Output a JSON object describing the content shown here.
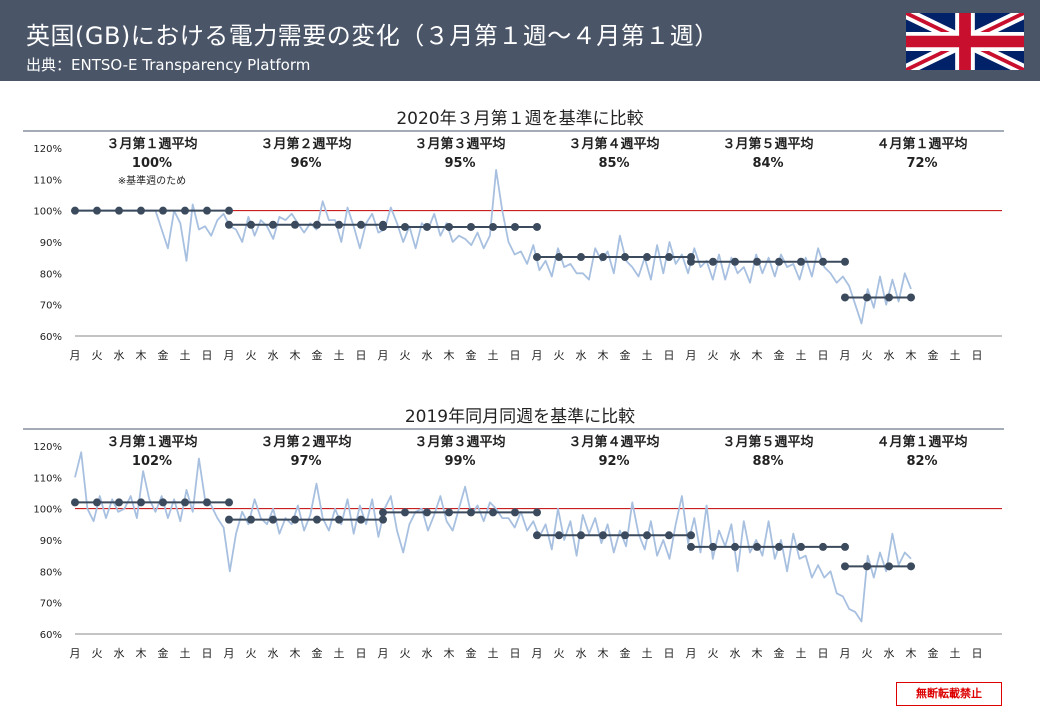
{
  "header": {
    "title": "英国(GB)における電力需要の変化（３月第１週～４月第１週）",
    "source": "出典：ENTSO-E Transparency Platform"
  },
  "flag": "united-kingdom-flag",
  "stamp": "無断転載禁止",
  "colors": {
    "header_bg": "#4a5568",
    "series": "#a8c0e0",
    "average": "#3b4a5c",
    "baseline": "#c00000",
    "axis_line": "#4a5a70"
  },
  "chart_data": [
    {
      "type": "line",
      "title": "2020年３月第１週を基準に比較",
      "x_tick_labels": [
        "月",
        "火",
        "水",
        "木",
        "金",
        "土",
        "日",
        "月",
        "火",
        "水",
        "木",
        "金",
        "土",
        "日",
        "月",
        "火",
        "水",
        "木",
        "金",
        "土",
        "日",
        "月",
        "火",
        "水",
        "木",
        "金",
        "土",
        "日",
        "月",
        "火",
        "水",
        "木",
        "金",
        "土",
        "日",
        "月",
        "火",
        "水",
        "木",
        "金",
        "土",
        "日"
      ],
      "y_ticks": [
        "120%",
        "110%",
        "100%",
        "90%",
        "80%",
        "70%",
        "60%"
      ],
      "ylim": [
        60,
        120
      ],
      "baseline_value": 100,
      "weeks": [
        {
          "label": "３月第１週平均",
          "value_label": "100%",
          "note": "※基準週のため",
          "average": 100,
          "start_day": 0,
          "end_day": 7
        },
        {
          "label": "３月第２週平均",
          "value_label": "96%",
          "average": 95.5,
          "start_day": 7,
          "end_day": 14
        },
        {
          "label": "３月第３週平均",
          "value_label": "95%",
          "average": 94.8,
          "start_day": 14,
          "end_day": 21
        },
        {
          "label": "３月第４週平均",
          "value_label": "85%",
          "average": 85.2,
          "start_day": 21,
          "end_day": 28
        },
        {
          "label": "３月第５週平均",
          "value_label": "84%",
          "average": 83.7,
          "start_day": 28,
          "end_day": 35
        },
        {
          "label": "４月第１週平均",
          "value_label": "72%",
          "average": 72.3,
          "start_day": 35,
          "end_day": 38
        }
      ],
      "series": [
        {
          "days_covered": 38,
          "values": [
            100,
            100,
            100,
            100,
            100,
            100,
            100,
            100,
            100,
            100,
            100,
            100,
            100,
            100,
            94,
            88,
            100,
            96,
            84,
            102,
            94,
            95,
            92,
            97,
            99,
            95,
            94,
            90,
            98,
            92,
            97,
            95,
            91,
            98,
            97,
            99,
            96,
            93,
            96,
            94,
            103,
            97,
            97,
            90,
            101,
            95,
            88,
            96,
            99,
            93,
            94,
            101,
            96,
            90,
            95,
            88,
            96,
            94,
            99,
            92,
            96,
            90,
            92,
            91,
            89,
            93,
            88,
            92,
            113,
            100,
            90,
            86,
            87,
            83,
            89,
            81,
            84,
            79,
            88,
            82,
            83,
            80,
            80,
            78,
            88,
            84,
            87,
            80,
            92,
            84,
            82,
            79,
            85,
            78,
            89,
            80,
            90,
            83,
            86,
            80,
            88,
            82,
            84,
            78,
            86,
            78,
            85,
            80,
            82,
            77,
            86,
            80,
            85,
            79,
            86,
            82,
            83,
            78,
            85,
            79,
            88,
            82,
            80,
            77,
            79,
            76,
            70,
            64,
            75,
            69,
            79,
            70,
            78,
            71,
            80,
            75
          ]
        }
      ]
    },
    {
      "type": "line",
      "title": "2019年同月同週を基準に比較",
      "x_tick_labels": [
        "月",
        "火",
        "水",
        "木",
        "金",
        "土",
        "日",
        "月",
        "火",
        "水",
        "木",
        "金",
        "土",
        "日",
        "月",
        "火",
        "水",
        "木",
        "金",
        "土",
        "日",
        "月",
        "火",
        "水",
        "木",
        "金",
        "土",
        "日",
        "月",
        "火",
        "水",
        "木",
        "金",
        "土",
        "日",
        "月",
        "火",
        "水",
        "木",
        "金",
        "土",
        "日"
      ],
      "y_ticks": [
        "120%",
        "110%",
        "100%",
        "90%",
        "80%",
        "70%",
        "60%"
      ],
      "ylim": [
        60,
        120
      ],
      "baseline_value": 100,
      "weeks": [
        {
          "label": "３月第１週平均",
          "value_label": "102%",
          "average": 102,
          "start_day": 0,
          "end_day": 7
        },
        {
          "label": "３月第２週平均",
          "value_label": "97%",
          "average": 96.5,
          "start_day": 7,
          "end_day": 14
        },
        {
          "label": "３月第３週平均",
          "value_label": "99%",
          "average": 98.8,
          "start_day": 14,
          "end_day": 21
        },
        {
          "label": "３月第４週平均",
          "value_label": "92%",
          "average": 91.5,
          "start_day": 21,
          "end_day": 28
        },
        {
          "label": "３月第５週平均",
          "value_label": "88%",
          "average": 87.8,
          "start_day": 28,
          "end_day": 35
        },
        {
          "label": "４月第１週平均",
          "value_label": "82%",
          "average": 81.6,
          "start_day": 35,
          "end_day": 38
        }
      ],
      "series": [
        {
          "days_covered": 38,
          "values": [
            110,
            118,
            100,
            96,
            104,
            97,
            103,
            99,
            100,
            104,
            97,
            112,
            103,
            99,
            104,
            97,
            103,
            96,
            106,
            99,
            116,
            103,
            101,
            97,
            94,
            80,
            92,
            99,
            95,
            103,
            97,
            95,
            100,
            92,
            97,
            95,
            101,
            93,
            98,
            108,
            97,
            93,
            100,
            95,
            103,
            92,
            101,
            95,
            103,
            91,
            100,
            104,
            93,
            86,
            95,
            99,
            100,
            93,
            98,
            104,
            96,
            93,
            100,
            107,
            98,
            101,
            96,
            102,
            100,
            97,
            97,
            94,
            99,
            93,
            96,
            91,
            95,
            87,
            100,
            90,
            96,
            85,
            98,
            92,
            97,
            89,
            95,
            86,
            93,
            88,
            102,
            92,
            87,
            96,
            85,
            90,
            84,
            95,
            104,
            89,
            97,
            86,
            101,
            84,
            93,
            88,
            95,
            80,
            96,
            86,
            90,
            85,
            96,
            84,
            90,
            80,
            92,
            84,
            85,
            78,
            82,
            78,
            80,
            73,
            72,
            68,
            67,
            64,
            85,
            78,
            86,
            80,
            92,
            82,
            86,
            84
          ]
        }
      ]
    }
  ]
}
